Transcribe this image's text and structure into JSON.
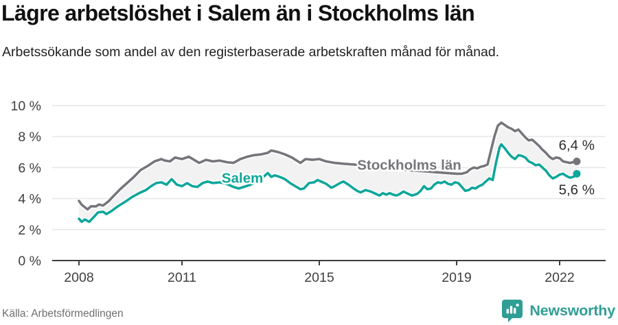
{
  "title": "Lägre arbetslöshet i Salem än i Stockholms län",
  "subtitle": "Arbetssökande som andel av den registerbaserade arbetskraften månad för månad.",
  "footer": {
    "source": "Källa: Arbetsförmedlingen",
    "brand": "Newsworthy"
  },
  "chart_data": {
    "type": "line",
    "title": "Lägre arbetslöshet i Salem än i Stockholms län",
    "subtitle": "Arbetssökande som andel av den registerbaserade arbetskraften månad för månad.",
    "xlabel": "",
    "ylabel": "",
    "ylim": [
      0,
      10
    ],
    "xlim": [
      2007.2,
      2023.3
    ],
    "grid": "horizontal",
    "legend_position": "inline",
    "x_ticks": [
      2008,
      2011,
      2015,
      2019,
      2022
    ],
    "y_ticks": [
      {
        "value": 0,
        "label": "0 %"
      },
      {
        "value": 2,
        "label": "2 %"
      },
      {
        "value": 4,
        "label": "4 %"
      },
      {
        "value": 6,
        "label": "6 %"
      },
      {
        "value": 8,
        "label": "8 %"
      },
      {
        "value": 10,
        "label": "10 %"
      }
    ],
    "colors": {
      "grid": "#e5e5e5",
      "axis": "#3d3d3d",
      "band": "#f2f2f2"
    },
    "series": [
      {
        "name": "Stockholms län",
        "slug": "stockholms-lan",
        "color": "#75757b",
        "end_label": "6,4 %",
        "end_value": 6.4,
        "end_label_dy": -17,
        "label_at": [
          2017.62,
          6.15
        ],
        "points": [
          [
            2008,
            3.85
          ],
          [
            2008.08,
            3.6
          ],
          [
            2008.25,
            3.3
          ],
          [
            2008.35,
            3.5
          ],
          [
            2008.5,
            3.5
          ],
          [
            2008.58,
            3.62
          ],
          [
            2008.7,
            3.55
          ],
          [
            2008.85,
            3.8
          ],
          [
            2009,
            4.15
          ],
          [
            2009.2,
            4.6
          ],
          [
            2009.4,
            5
          ],
          [
            2009.6,
            5.4
          ],
          [
            2009.8,
            5.85
          ],
          [
            2010,
            6.1
          ],
          [
            2010.2,
            6.4
          ],
          [
            2010.4,
            6.55
          ],
          [
            2010.5,
            6.45
          ],
          [
            2010.65,
            6.4
          ],
          [
            2010.8,
            6.65
          ],
          [
            2011,
            6.55
          ],
          [
            2011.2,
            6.7
          ],
          [
            2011.35,
            6.5
          ],
          [
            2011.5,
            6.3
          ],
          [
            2011.7,
            6.5
          ],
          [
            2011.9,
            6.4
          ],
          [
            2012.1,
            6.45
          ],
          [
            2012.3,
            6.35
          ],
          [
            2012.5,
            6.3
          ],
          [
            2012.7,
            6.55
          ],
          [
            2012.9,
            6.7
          ],
          [
            2013.1,
            6.8
          ],
          [
            2013.3,
            6.85
          ],
          [
            2013.5,
            6.95
          ],
          [
            2013.6,
            7.1
          ],
          [
            2013.8,
            7
          ],
          [
            2014,
            6.85
          ],
          [
            2014.2,
            6.65
          ],
          [
            2014.45,
            6.3
          ],
          [
            2014.6,
            6.55
          ],
          [
            2014.8,
            6.5
          ],
          [
            2015,
            6.55
          ],
          [
            2015.2,
            6.4
          ],
          [
            2015.45,
            6.3
          ],
          [
            2015.7,
            6.25
          ],
          [
            2016,
            6.2
          ],
          [
            2016.3,
            6.15
          ],
          [
            2016.6,
            6.05
          ],
          [
            2016.9,
            6
          ],
          [
            2017.2,
            5.9
          ],
          [
            2017.5,
            5.85
          ],
          [
            2017.8,
            5.8
          ],
          [
            2018.1,
            5.75
          ],
          [
            2018.4,
            5.7
          ],
          [
            2018.7,
            5.65
          ],
          [
            2019,
            5.6
          ],
          [
            2019.15,
            5.6
          ],
          [
            2019.3,
            5.7
          ],
          [
            2019.4,
            5.9
          ],
          [
            2019.5,
            6
          ],
          [
            2019.6,
            5.95
          ],
          [
            2019.7,
            6.05
          ],
          [
            2019.8,
            6.1
          ],
          [
            2019.9,
            6.2
          ],
          [
            2020,
            7.1
          ],
          [
            2020.1,
            8
          ],
          [
            2020.2,
            8.7
          ],
          [
            2020.3,
            8.9
          ],
          [
            2020.4,
            8.75
          ],
          [
            2020.5,
            8.6
          ],
          [
            2020.6,
            8.5
          ],
          [
            2020.7,
            8.35
          ],
          [
            2020.8,
            8.45
          ],
          [
            2020.9,
            8.2
          ],
          [
            2021,
            7.95
          ],
          [
            2021.1,
            7.75
          ],
          [
            2021.2,
            7.8
          ],
          [
            2021.3,
            7.6
          ],
          [
            2021.4,
            7.4
          ],
          [
            2021.5,
            7.15
          ],
          [
            2021.6,
            6.95
          ],
          [
            2021.7,
            6.7
          ],
          [
            2021.8,
            6.55
          ],
          [
            2021.9,
            6.65
          ],
          [
            2022,
            6.6
          ],
          [
            2022.1,
            6.4
          ],
          [
            2022.2,
            6.35
          ],
          [
            2022.3,
            6.3
          ],
          [
            2022.4,
            6.35
          ],
          [
            2022.5,
            6.4
          ]
        ]
      },
      {
        "name": "Salem",
        "slug": "salem",
        "color": "#0fa69b",
        "end_label": "5,6 %",
        "end_value": 5.6,
        "end_label_dy": 30,
        "label_at": [
          2012.76,
          5.3
        ],
        "points": [
          [
            2008,
            2.7
          ],
          [
            2008.08,
            2.5
          ],
          [
            2008.17,
            2.65
          ],
          [
            2008.3,
            2.5
          ],
          [
            2008.45,
            2.85
          ],
          [
            2008.55,
            3.1
          ],
          [
            2008.7,
            3.15
          ],
          [
            2008.8,
            3
          ],
          [
            2008.95,
            3.2
          ],
          [
            2009.1,
            3.45
          ],
          [
            2009.35,
            3.8
          ],
          [
            2009.55,
            4.1
          ],
          [
            2009.75,
            4.35
          ],
          [
            2009.95,
            4.55
          ],
          [
            2010.1,
            4.8
          ],
          [
            2010.25,
            5
          ],
          [
            2010.4,
            5.05
          ],
          [
            2010.55,
            4.9
          ],
          [
            2010.7,
            5.25
          ],
          [
            2010.85,
            4.9
          ],
          [
            2011,
            4.8
          ],
          [
            2011.15,
            5
          ],
          [
            2011.3,
            4.8
          ],
          [
            2011.45,
            4.75
          ],
          [
            2011.6,
            5
          ],
          [
            2011.75,
            5.1
          ],
          [
            2011.9,
            5
          ],
          [
            2012.1,
            5.05
          ],
          [
            2012.3,
            4.95
          ],
          [
            2012.5,
            4.75
          ],
          [
            2012.65,
            4.65
          ],
          [
            2012.8,
            4.75
          ],
          [
            2013,
            4.9
          ],
          [
            2013.2,
            5.1
          ],
          [
            2013.35,
            5.35
          ],
          [
            2013.5,
            5.65
          ],
          [
            2013.6,
            5.4
          ],
          [
            2013.7,
            5.5
          ],
          [
            2013.85,
            5.4
          ],
          [
            2014,
            5.25
          ],
          [
            2014.15,
            5
          ],
          [
            2014.3,
            4.8
          ],
          [
            2014.45,
            4.6
          ],
          [
            2014.55,
            4.65
          ],
          [
            2014.7,
            5
          ],
          [
            2014.85,
            5.05
          ],
          [
            2014.95,
            5.2
          ],
          [
            2015.05,
            5.1
          ],
          [
            2015.2,
            4.95
          ],
          [
            2015.35,
            4.7
          ],
          [
            2015.45,
            4.8
          ],
          [
            2015.6,
            5
          ],
          [
            2015.7,
            5.1
          ],
          [
            2015.85,
            4.9
          ],
          [
            2016,
            4.65
          ],
          [
            2016.1,
            4.5
          ],
          [
            2016.2,
            4.4
          ],
          [
            2016.35,
            4.55
          ],
          [
            2016.5,
            4.45
          ],
          [
            2016.65,
            4.3
          ],
          [
            2016.75,
            4.2
          ],
          [
            2016.85,
            4.35
          ],
          [
            2016.95,
            4.25
          ],
          [
            2017.05,
            4.35
          ],
          [
            2017.15,
            4.25
          ],
          [
            2017.25,
            4.2
          ],
          [
            2017.35,
            4.3
          ],
          [
            2017.45,
            4.45
          ],
          [
            2017.55,
            4.35
          ],
          [
            2017.7,
            4.2
          ],
          [
            2017.85,
            4.3
          ],
          [
            2017.95,
            4.5
          ],
          [
            2018.05,
            4.8
          ],
          [
            2018.15,
            4.6
          ],
          [
            2018.25,
            4.65
          ],
          [
            2018.35,
            4.9
          ],
          [
            2018.45,
            5.05
          ],
          [
            2018.55,
            5
          ],
          [
            2018.65,
            5.1
          ],
          [
            2018.75,
            4.95
          ],
          [
            2018.85,
            4.9
          ],
          [
            2018.95,
            5.05
          ],
          [
            2019.05,
            5
          ],
          [
            2019.15,
            4.75
          ],
          [
            2019.25,
            4.5
          ],
          [
            2019.35,
            4.55
          ],
          [
            2019.45,
            4.7
          ],
          [
            2019.55,
            4.65
          ],
          [
            2019.65,
            4.8
          ],
          [
            2019.75,
            4.9
          ],
          [
            2019.85,
            5.1
          ],
          [
            2019.95,
            5.3
          ],
          [
            2020.05,
            5.2
          ],
          [
            2020.15,
            6.35
          ],
          [
            2020.25,
            7.3
          ],
          [
            2020.3,
            7.5
          ],
          [
            2020.4,
            7.25
          ],
          [
            2020.5,
            6.95
          ],
          [
            2020.6,
            6.7
          ],
          [
            2020.7,
            6.55
          ],
          [
            2020.8,
            6.8
          ],
          [
            2020.9,
            6.75
          ],
          [
            2021,
            6.65
          ],
          [
            2021.1,
            6.4
          ],
          [
            2021.2,
            6.3
          ],
          [
            2021.3,
            6.15
          ],
          [
            2021.4,
            6.2
          ],
          [
            2021.5,
            6
          ],
          [
            2021.6,
            5.8
          ],
          [
            2021.7,
            5.5
          ],
          [
            2021.8,
            5.3
          ],
          [
            2021.9,
            5.4
          ],
          [
            2022,
            5.55
          ],
          [
            2022.1,
            5.6
          ],
          [
            2022.2,
            5.45
          ],
          [
            2022.3,
            5.35
          ],
          [
            2022.4,
            5.4
          ],
          [
            2022.5,
            5.6
          ]
        ]
      }
    ]
  }
}
